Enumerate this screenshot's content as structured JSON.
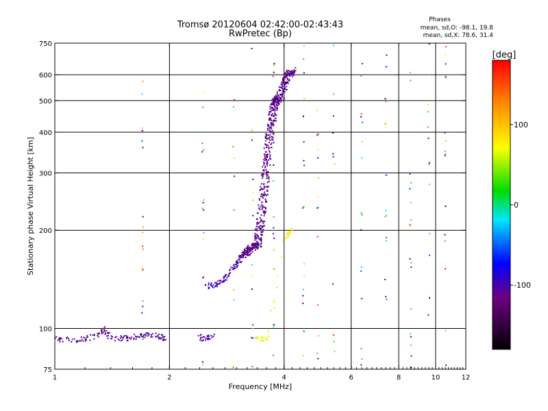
{
  "chart_data": {
    "type": "scatter",
    "title": "Tromsø 20120604 02:42:00-02:43:43",
    "subtitle": "RwPretec (Bp)",
    "xlabel": "Frequency [MHz]",
    "ylabel": "Stationary phase Virtual Height [km]",
    "x_scale": "log",
    "y_scale": "log",
    "xlim": [
      1,
      12
    ],
    "ylim": [
      75,
      750
    ],
    "x_ticks": [
      "1",
      "2",
      "4",
      "6",
      "8",
      "10",
      "12"
    ],
    "y_ticks": [
      "75",
      "100",
      "200",
      "300",
      "400",
      "500",
      "600",
      "750"
    ],
    "grid": true,
    "phases_box": {
      "heading": "Phases",
      "line1": "mean, sd,O: -98.1, 19.8",
      "line2": "mean, sd,X:  78.6, 31.4"
    },
    "colorbar": {
      "label": "[deg]",
      "range": [
        -180,
        180
      ],
      "ticks": [
        "100",
        "0",
        "-100"
      ]
    },
    "traces": [
      {
        "phase": -110,
        "points": [
          [
            1.0,
            93
          ],
          [
            1.1,
            92
          ],
          [
            1.2,
            93
          ],
          [
            1.3,
            95
          ],
          [
            1.35,
            100
          ],
          [
            1.4,
            94
          ],
          [
            1.5,
            93
          ],
          [
            1.6,
            94
          ],
          [
            1.7,
            95
          ],
          [
            1.8,
            96
          ],
          [
            1.9,
            94
          ],
          [
            1.95,
            93
          ]
        ]
      },
      {
        "phase": -100,
        "points": [
          [
            2.4,
            94
          ],
          [
            2.5,
            93
          ],
          [
            2.6,
            95
          ]
        ]
      },
      {
        "phase": -100,
        "points": [
          [
            2.5,
            135
          ],
          [
            2.6,
            136
          ],
          [
            2.7,
            138
          ],
          [
            2.8,
            142
          ],
          [
            2.9,
            150
          ],
          [
            3.0,
            158
          ],
          [
            3.1,
            163
          ]
        ]
      },
      {
        "phase": -115,
        "points": [
          [
            3.1,
            165
          ],
          [
            3.2,
            172
          ],
          [
            3.3,
            178
          ],
          [
            3.4,
            180
          ],
          [
            3.45,
            200
          ],
          [
            3.5,
            230
          ],
          [
            3.55,
            270
          ],
          [
            3.6,
            320
          ],
          [
            3.65,
            370
          ],
          [
            3.7,
            420
          ],
          [
            3.75,
            470
          ],
          [
            3.8,
            500
          ],
          [
            3.9,
            510
          ],
          [
            4.0,
            560
          ],
          [
            4.1,
            600
          ],
          [
            4.2,
            620
          ]
        ]
      }
    ],
    "x_trace": {
      "phase": 75,
      "points": [
        [
          3.3,
          94
        ],
        [
          3.5,
          93
        ],
        [
          3.6,
          92
        ],
        [
          4.0,
          185
        ],
        [
          4.1,
          195
        ],
        [
          4.2,
          200
        ]
      ]
    },
    "scatter_frequencies": [
      1.7,
      2.45,
      2.95,
      3.3,
      3.75,
      4.5,
      4.9,
      5.4,
      6.4,
      7.4,
      8.6,
      9.6,
      10.6
    ]
  }
}
